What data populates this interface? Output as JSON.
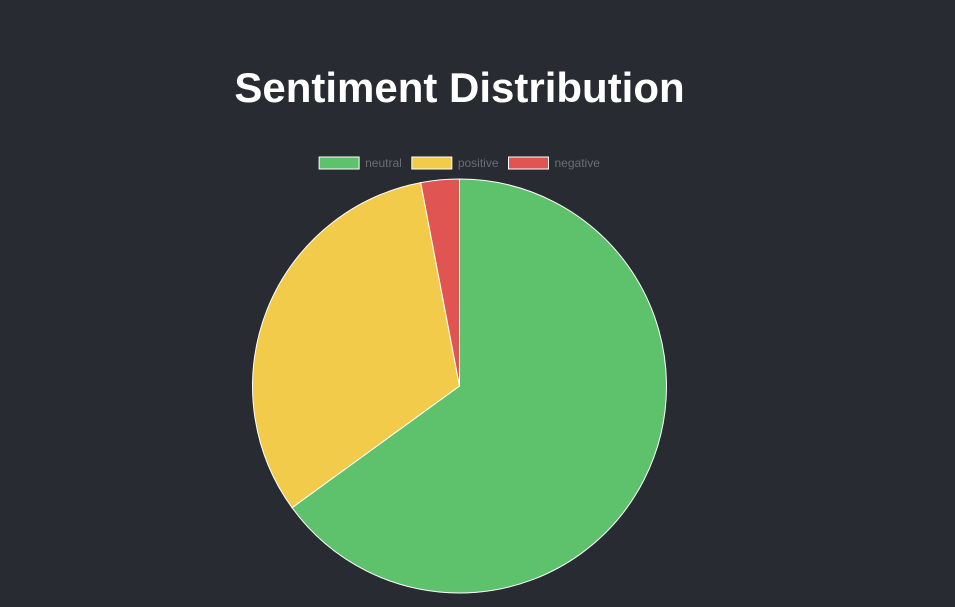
{
  "chart_data": {
    "type": "pie",
    "title": "Sentiment Distribution",
    "legend_position": "top",
    "categories": [
      "neutral",
      "positive",
      "negative"
    ],
    "values": [
      65,
      32,
      3
    ],
    "colors": [
      "#5dc26b",
      "#f2cb4a",
      "#e05551"
    ],
    "slice_border_color": "#ffffff",
    "legend_text_color": "#6b6e74",
    "background_color": "#282b32"
  }
}
